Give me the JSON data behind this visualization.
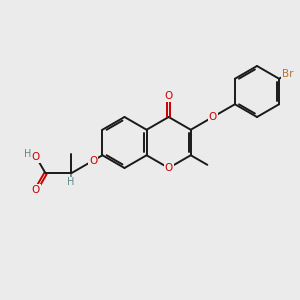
{
  "bg_color": "#ebebeb",
  "bond_color": "#1a1a1a",
  "oxygen_color": "#cc0000",
  "bromine_color": "#b87333",
  "hydrogen_color": "#5a8a8a",
  "bond_lw": 1.4,
  "font_size": 7.5
}
